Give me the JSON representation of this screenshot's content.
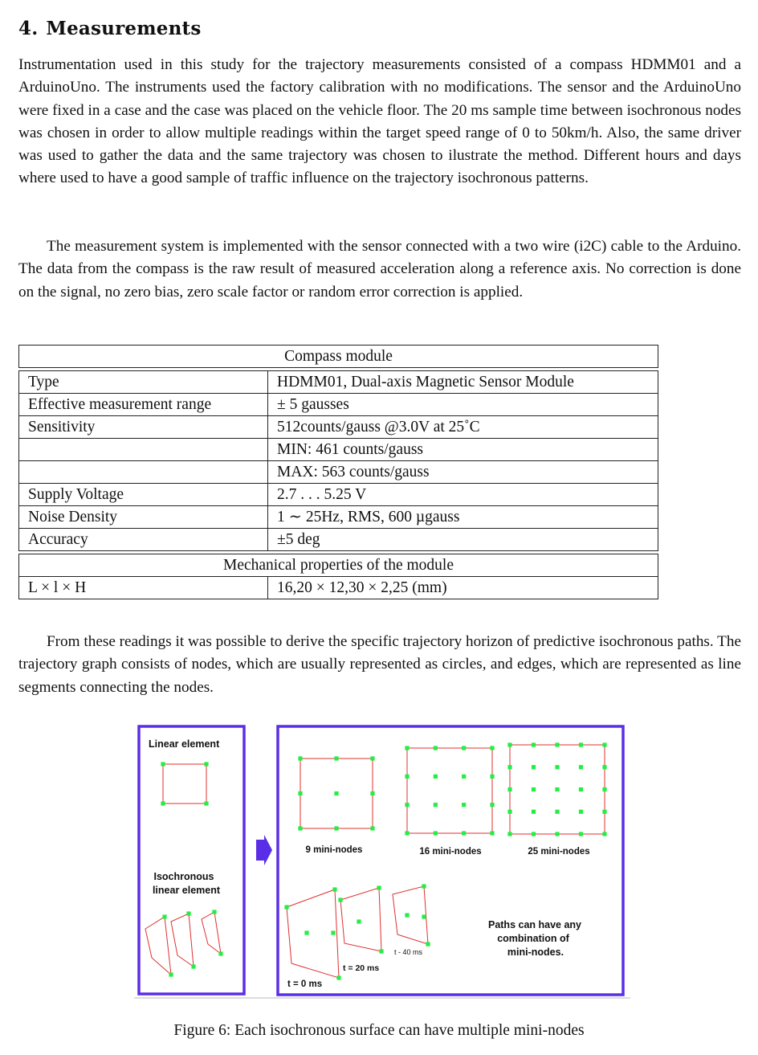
{
  "section": {
    "number": "4.",
    "title": "Measurements"
  },
  "paragraphs": {
    "p1": "Instrumentation used in this study for the trajectory measurements consisted of a compass HDMM01 and a ArduinoUno. The instruments used the factory calibration with no modifications. The sensor and the ArduinoUno were fixed in a case and the case was placed on the vehicle floor. The 20 ms sample time between isochronous nodes was chosen in order to allow multiple readings within the target speed range of 0 to 50km/h. Also, the same driver was used to gather the data and the same trajectory was chosen to ilustrate the method. Different hours and days where used to have a good sample of traffic influence on the trajectory isochronous patterns.",
    "p2": "The measurement system is implemented with the sensor connected with a two wire (i2C) cable to the Arduino. The data from the compass is the raw result of measured acceleration along a reference axis. No correction is done on the signal, no zero bias, zero scale factor or random error correction is applied.",
    "p3": "From these readings it was possible to derive the specific trajectory horizon of predictive isochronous paths. The trajectory graph consists of nodes, which are usually represented as circles, and edges, which are represented as line segments connecting the nodes."
  },
  "table": {
    "header1": "Compass module",
    "rows1": [
      {
        "label": "Type",
        "value": "HDMM01, Dual-axis Magnetic Sensor Module"
      },
      {
        "label": "Effective measurement range",
        "value": "± 5 gausses"
      },
      {
        "label": "Sensitivity",
        "value": "512counts/gauss @3.0V at 25˚C"
      },
      {
        "label": "",
        "value": "MIN: 461 counts/gauss"
      },
      {
        "label": "",
        "value": "MAX: 563 counts/gauss"
      },
      {
        "label": "Supply Voltage",
        "value": "2.7 . . .  5.25 V"
      },
      {
        "label": "Noise Density",
        "value": "1 ∼ 25Hz, RMS, 600 µgauss"
      },
      {
        "label": "Accuracy",
        "value": "±5 deg"
      }
    ],
    "header2": "Mechanical properties of the module",
    "rows2": [
      {
        "label": "L × l × H",
        "value": "16,20 × 12,30 × 2,25 (mm)"
      }
    ]
  },
  "figure": {
    "labels": {
      "linear_element": "Linear element",
      "isochronous_line1": "Isochronous",
      "isochronous_line2": "linear element",
      "nodes9": "9 mini-nodes",
      "nodes16": "16 mini-nodes",
      "nodes25": "25 mini-nodes",
      "paths_line1": "Paths can have any",
      "paths_line2": "combination of",
      "paths_line3": "mini-nodes.",
      "t0": "t = 0 ms",
      "t20": "t = 20 ms",
      "t40": "t - 40 ms"
    },
    "colors": {
      "frame": "#5a2ee6",
      "edge": "#e03030",
      "node": "#22ee44"
    },
    "caption": "Figure 6: Each isochronous surface can have multiple mini-nodes"
  }
}
